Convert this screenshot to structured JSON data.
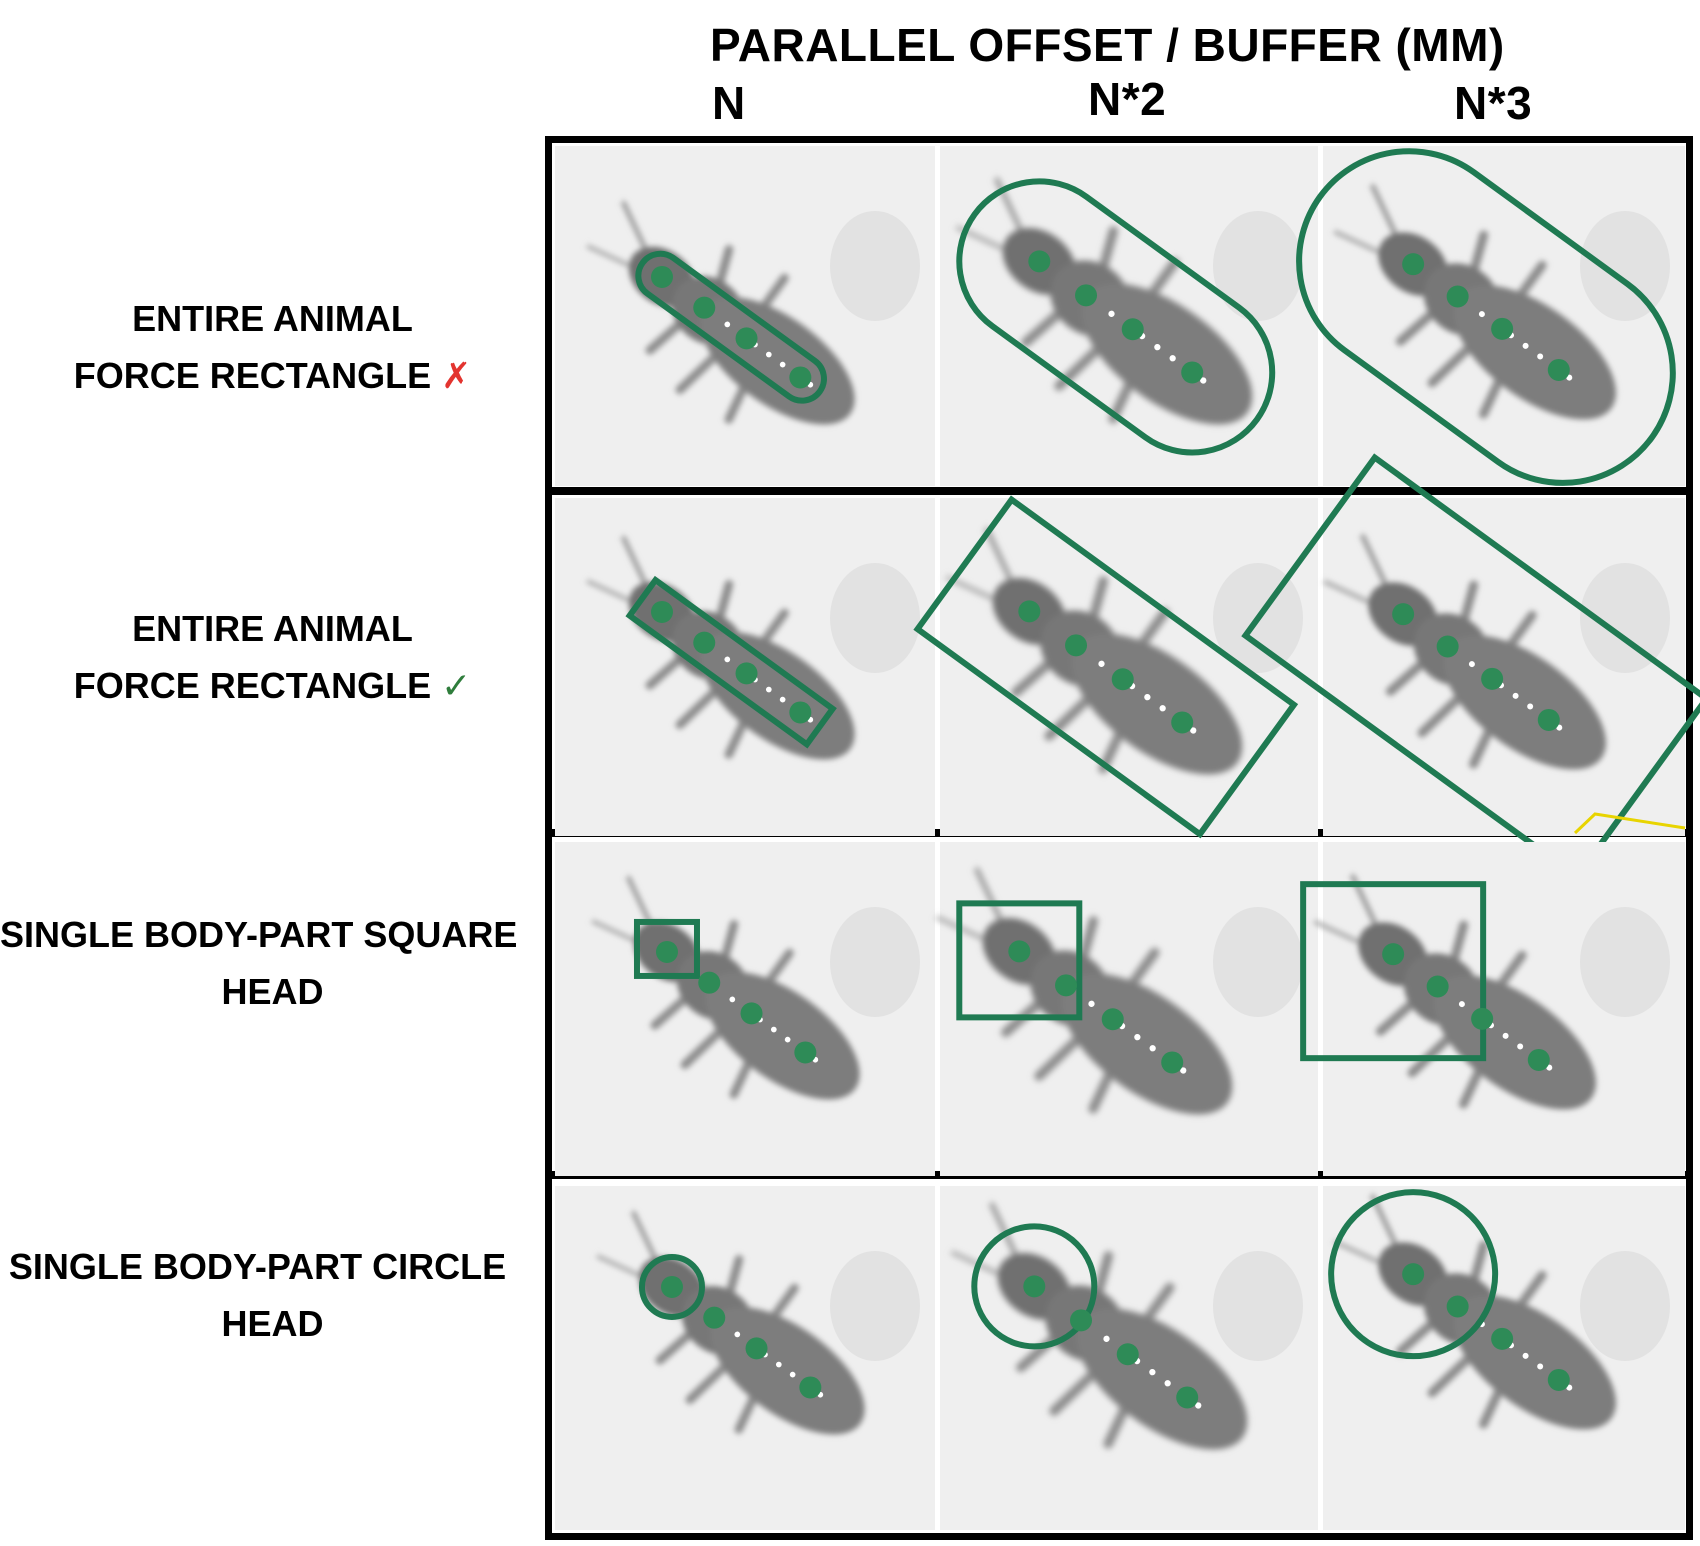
{
  "header": {
    "title": "PARALLEL OFFSET / BUFFER (MM)",
    "columns": [
      "N",
      "N*2",
      "N*3"
    ]
  },
  "rows": [
    {
      "line1": "ENTIRE ANIMAL",
      "line2": "FORCE RECTANGLE",
      "mark": "✗",
      "mark_meaning": "incorrect",
      "shape": "rounded-buffer"
    },
    {
      "line1": "ENTIRE ANIMAL",
      "line2": "FORCE RECTANGLE",
      "mark": "✓",
      "mark_meaning": "correct",
      "shape": "rectangle"
    },
    {
      "line1": "SINGLE BODY-PART SQUARE",
      "line2": "HEAD",
      "shape": "square"
    },
    {
      "line1": "SINGLE BODY-PART CIRCLE",
      "line2": "HEAD",
      "shape": "circle"
    }
  ],
  "colors": {
    "roi_green": "#1f7a52",
    "point_green": "#2e8b57",
    "cross_red": "#e3342f",
    "check_green": "#2f7d3c",
    "yellow_line": "#e8d400"
  }
}
